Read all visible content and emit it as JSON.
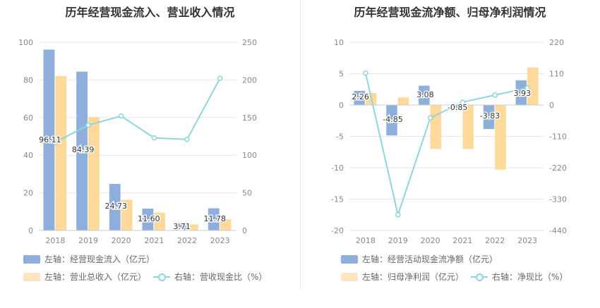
{
  "colors": {
    "blue": "#8EAEDC",
    "orange": "#FFD99A",
    "teal": "#91D5DC",
    "grid": "#e6e6e6",
    "axis_text": "#888888"
  },
  "chart_data": [
    {
      "type": "bar",
      "title": "历年经营现金流入、营业收入情况",
      "categories": [
        "2018",
        "2019",
        "2020",
        "2021",
        "2022",
        "2023"
      ],
      "left_axis": {
        "ylim": [
          0,
          100
        ],
        "ticks": [
          "0",
          "20",
          "40",
          "60",
          "80",
          "100"
        ]
      },
      "right_axis": {
        "ylim": [
          0,
          250
        ],
        "ticks": [
          "0",
          "50",
          "100",
          "150",
          "200",
          "250"
        ]
      },
      "series": [
        {
          "name": "左轴：经营现金流入（亿元）",
          "type": "bar",
          "axis": "left",
          "color": "#8EAEDC",
          "values": [
            96.11,
            84.39,
            24.73,
            11.6,
            3.71,
            11.78
          ],
          "labels": [
            "96.11",
            "84.39",
            "24.73",
            "11.60",
            "3.71",
            "11.78"
          ]
        },
        {
          "name": "左轴：营业总收入（亿元）",
          "type": "bar",
          "axis": "left",
          "color": "#FFD99A",
          "values": [
            82,
            60.3,
            16.3,
            9.5,
            3.2,
            5.9
          ]
        },
        {
          "name": "右轴：营收现金比（%）",
          "type": "line",
          "axis": "right",
          "color": "#91D5DC",
          "values": [
            117,
            140,
            152,
            123,
            121,
            202
          ]
        }
      ]
    },
    {
      "type": "bar",
      "title": "历年经营现金流净额、归母净利润情况",
      "categories": [
        "2018",
        "2019",
        "2020",
        "2021",
        "2022",
        "2023"
      ],
      "left_axis": {
        "ylim": [
          -20,
          10
        ],
        "ticks": [
          "-20",
          "-15",
          "-10",
          "-5",
          "0",
          "5",
          "10"
        ]
      },
      "right_axis": {
        "ylim": [
          -440,
          220
        ],
        "ticks": [
          "-440",
          "-330",
          "-220",
          "-110",
          "0",
          "110",
          "220"
        ]
      },
      "series": [
        {
          "name": "左轴：经营活动现金流净额（亿元）",
          "type": "bar",
          "axis": "left",
          "color": "#8EAEDC",
          "values": [
            2.26,
            -4.85,
            3.08,
            -0.85,
            -3.83,
            3.93
          ],
          "labels": [
            "2.26",
            "-4.85",
            "3.08",
            "-0.85",
            "-3.83",
            "3.93"
          ]
        },
        {
          "name": "左轴：归母净利润（亿元）",
          "type": "bar",
          "axis": "left",
          "color": "#FFD99A",
          "values": [
            1.9,
            1.2,
            -7.0,
            -7.0,
            -10.3,
            6.0
          ]
        },
        {
          "name": "右轴：净现比（%）",
          "type": "line",
          "axis": "right",
          "color": "#91D5DC",
          "values": [
            112,
            -385,
            -45,
            10,
            35,
            60
          ]
        }
      ]
    }
  ]
}
